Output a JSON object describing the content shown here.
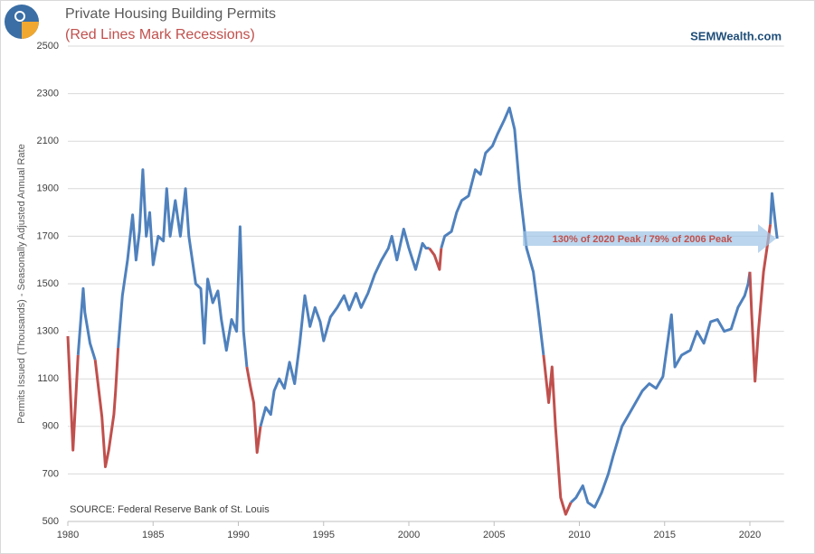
{
  "chart_data": {
    "type": "line",
    "title": "Private Housing Building Permits",
    "subtitle": "(Red Lines Mark Recessions)",
    "brand": "SEMWealth.com",
    "ylabel": "Permits Issued (Thousands) - Seasonally Adjusted Annual Rate",
    "source": "SOURCE:   Federal Reserve Bank of St. Louis",
    "annotation": "130% of 2020 Peak / 79% of 2006 Peak",
    "xlim": [
      1980,
      2022
    ],
    "xticks": [
      1980,
      1985,
      1990,
      1995,
      2000,
      2005,
      2010,
      2015,
      2020
    ],
    "ylim": [
      500,
      2500
    ],
    "yticks": [
      500,
      700,
      900,
      1100,
      1300,
      1500,
      1700,
      1900,
      2100,
      2300,
      2500
    ],
    "grid": true,
    "series": [
      {
        "color": "#4f81bd",
        "x": [
          1980.6,
          1980.9,
          1981.0,
          1981.3,
          1981.6,
          1982.2,
          1982.95,
          1983.2,
          1983.5,
          1983.8,
          1984.0,
          1984.2,
          1984.4,
          1984.6,
          1984.8,
          1985.0,
          1985.3,
          1985.6,
          1985.8,
          1986.0,
          1986.3,
          1986.6,
          1986.9,
          1987.1,
          1987.5,
          1987.8,
          1988.0,
          1988.2,
          1988.5,
          1988.8,
          1989.0,
          1989.3,
          1989.6,
          1989.9,
          1990.1,
          1990.3,
          1990.5,
          1990.9,
          1991.3,
          1991.6,
          1991.9,
          1992.1,
          1992.4,
          1992.7,
          1993.0,
          1993.3,
          1993.6,
          1993.9,
          1994.2,
          1994.5,
          1994.8,
          1995.0,
          1995.4,
          1995.8,
          1996.2,
          1996.5,
          1996.9,
          1997.2,
          1997.6,
          1998.0,
          1998.4,
          1998.8,
          1999.0,
          1999.3,
          1999.7,
          2000.0,
          2000.4,
          2000.8,
          2001.0,
          2001.2,
          2001.5,
          2001.9,
          2002.1,
          2002.5,
          2002.8,
          2003.1,
          2003.5,
          2003.9,
          2004.2,
          2004.5,
          2004.9,
          2005.2,
          2005.6,
          2005.9,
          2006.2,
          2006.5,
          2006.9,
          2007.3,
          2007.6,
          2007.9,
          2008.6,
          2009.5,
          2009.8,
          2010.2,
          2010.5,
          2010.9,
          2011.3,
          2011.7,
          2012.0,
          2012.5,
          2012.9,
          2013.3,
          2013.7,
          2014.1,
          2014.5,
          2014.9,
          2015.4,
          2015.6,
          2016.0,
          2016.5,
          2016.9,
          2017.3,
          2017.7,
          2018.1,
          2018.5,
          2018.9,
          2019.3,
          2019.7,
          2019.9,
          2020.0,
          2020.5,
          2021.2,
          2021.3,
          2021.5,
          2021.6
        ],
        "values": [
          1200,
          1480,
          1380,
          1250,
          1180,
          null,
          1230,
          1450,
          1600,
          1790,
          1600,
          1720,
          1980,
          1700,
          1800,
          1580,
          1700,
          1680,
          1900,
          1700,
          1850,
          1700,
          1900,
          1700,
          1500,
          1480,
          1250,
          1520,
          1420,
          1470,
          1350,
          1220,
          1350,
          1300,
          1740,
          1300,
          1150,
          null,
          900,
          980,
          950,
          1050,
          1100,
          1060,
          1170,
          1080,
          1250,
          1450,
          1320,
          1400,
          1340,
          1260,
          1360,
          1400,
          1450,
          1390,
          1460,
          1400,
          1460,
          1540,
          1600,
          1650,
          1700,
          1600,
          1730,
          1650,
          1560,
          1670,
          1650,
          1650,
          null,
          1650,
          1700,
          1720,
          1800,
          1850,
          1870,
          1980,
          1960,
          2050,
          2080,
          2130,
          2190,
          2240,
          2150,
          1900,
          1650,
          1550,
          1380,
          1200,
          null,
          580,
          600,
          650,
          580,
          560,
          620,
          700,
          780,
          900,
          950,
          1000,
          1050,
          1080,
          1060,
          1110,
          1370,
          1150,
          1200,
          1220,
          1300,
          1250,
          1340,
          1350,
          1300,
          1310,
          1400,
          1450,
          1500,
          1550,
          null,
          1750,
          1880,
          1750,
          1690
        ]
      },
      {
        "color": "#c0504d",
        "x": [
          1980.0,
          1980.3,
          1980.6,
          1981.0,
          1981.6,
          1982.0,
          1982.2,
          1982.4,
          1982.7,
          1982.8,
          1982.95,
          1986.0,
          1990.5,
          1990.7,
          1990.9,
          1991.1,
          1991.3,
          1995.0,
          2001.2,
          2001.5,
          2001.8,
          2001.9,
          2005.0,
          2007.9,
          2008.2,
          2008.4,
          2008.6,
          2008.9,
          2009.2,
          2009.5,
          2015.0,
          2020.0,
          2020.1,
          2020.3,
          2020.5,
          2020.8,
          2021.0,
          2021.2
        ],
        "values": [
          1280,
          800,
          1200,
          null,
          1180,
          940,
          730,
          800,
          950,
          1050,
          1230,
          null,
          1150,
          1070,
          1000,
          790,
          900,
          null,
          1650,
          1620,
          1560,
          1650,
          null,
          1200,
          1000,
          1150,
          900,
          600,
          530,
          580,
          null,
          1550,
          1380,
          1090,
          1300,
          1550,
          1650,
          1750
        ]
      }
    ]
  }
}
